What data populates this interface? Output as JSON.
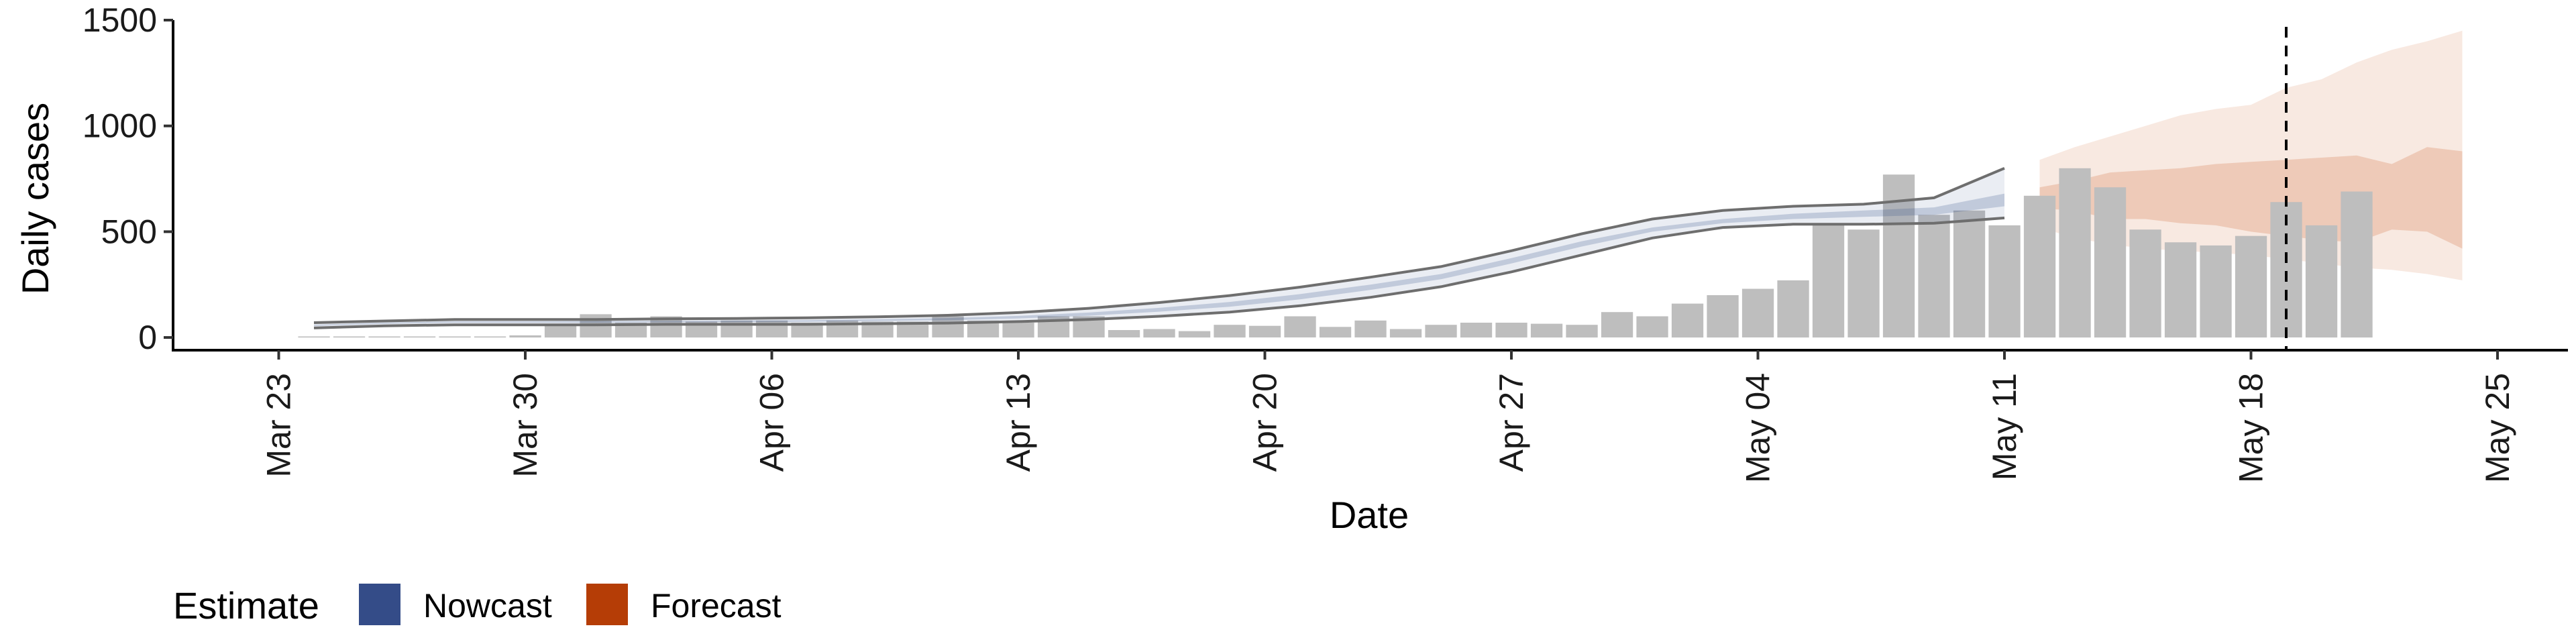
{
  "chart_data": {
    "type": "bar",
    "xlabel": "Date",
    "ylabel": "Daily cases",
    "x_ticks": [
      "Mar 23",
      "Mar 30",
      "Apr 06",
      "Apr 13",
      "Apr 20",
      "Apr 27",
      "May 04",
      "May 11",
      "May 18",
      "May 25"
    ],
    "y_ticks": [
      "0",
      "500",
      "1000",
      "1500"
    ],
    "ylim": [
      -60,
      1500
    ],
    "xlim": [
      "2020-03-20",
      "2020-05-27"
    ],
    "grid": false,
    "start_date": "2020-03-24",
    "reported_cases": [
      5,
      5,
      5,
      5,
      5,
      5,
      10,
      60,
      110,
      70,
      100,
      75,
      80,
      80,
      70,
      80,
      75,
      75,
      100,
      80,
      70,
      100,
      100,
      35,
      40,
      30,
      60,
      55,
      100,
      50,
      80,
      40,
      60,
      70,
      70,
      65,
      60,
      120,
      100,
      160,
      200,
      230,
      270,
      540,
      510,
      770,
      580,
      600,
      530,
      670,
      800,
      710,
      510,
      450,
      435,
      480,
      640,
      530,
      690
    ],
    "nowcast": {
      "dates": [
        "2020-03-24",
        "2020-03-26",
        "2020-03-28",
        "2020-03-30",
        "2020-04-01",
        "2020-04-03",
        "2020-04-05",
        "2020-04-07",
        "2020-04-09",
        "2020-04-11",
        "2020-04-13",
        "2020-04-15",
        "2020-04-17",
        "2020-04-19",
        "2020-04-21",
        "2020-04-23",
        "2020-04-25",
        "2020-04-27",
        "2020-04-29",
        "2020-05-01",
        "2020-05-03",
        "2020-05-05",
        "2020-05-07",
        "2020-05-09",
        "2020-05-11"
      ],
      "outer_lower": [
        45,
        55,
        60,
        60,
        60,
        62,
        62,
        62,
        65,
        68,
        75,
        85,
        100,
        120,
        150,
        190,
        240,
        310,
        390,
        470,
        520,
        535,
        535,
        540,
        565
      ],
      "inner_lower": [
        55,
        65,
        70,
        70,
        70,
        72,
        73,
        74,
        78,
        82,
        90,
        103,
        122,
        145,
        180,
        225,
        275,
        350,
        430,
        500,
        540,
        560,
        570,
        580,
        620
      ],
      "inner_upper": [
        60,
        70,
        76,
        76,
        77,
        78,
        80,
        82,
        86,
        92,
        102,
        118,
        140,
        168,
        205,
        250,
        300,
        375,
        455,
        520,
        560,
        585,
        600,
        615,
        680
      ],
      "outer_upper": [
        70,
        78,
        85,
        85,
        85,
        88,
        90,
        93,
        98,
        105,
        118,
        138,
        165,
        198,
        238,
        285,
        335,
        410,
        490,
        560,
        600,
        620,
        630,
        660,
        800
      ]
    },
    "forecast": {
      "dates": [
        "2020-05-12",
        "2020-05-13",
        "2020-05-14",
        "2020-05-15",
        "2020-05-16",
        "2020-05-17",
        "2020-05-18",
        "2020-05-19",
        "2020-05-20",
        "2020-05-21",
        "2020-05-22",
        "2020-05-23",
        "2020-05-24"
      ],
      "outer_lower": [
        520,
        470,
        440,
        420,
        410,
        400,
        390,
        370,
        350,
        330,
        320,
        300,
        270
      ],
      "inner_lower": [
        610,
        600,
        560,
        560,
        540,
        530,
        500,
        480,
        460,
        450,
        510,
        500,
        420
      ],
      "inner_upper": [
        710,
        740,
        780,
        790,
        800,
        820,
        830,
        840,
        850,
        860,
        820,
        900,
        880
      ],
      "outer_upper": [
        840,
        900,
        950,
        1000,
        1050,
        1080,
        1100,
        1180,
        1220,
        1300,
        1360,
        1400,
        1450
      ]
    },
    "vline_date": "2020-05-19",
    "legend": {
      "title": "Estimate",
      "placement": "bottom-left",
      "items": [
        {
          "name": "Nowcast",
          "color": "#344c88"
        },
        {
          "name": "Forecast",
          "color": "#b53d06"
        }
      ]
    },
    "colors": {
      "bars": "#bebebe",
      "nowcast_band": "#344c88",
      "forecast_band": "#d6865a",
      "nowcast_outline": "#6e6e6e",
      "vline": "#000000"
    }
  }
}
